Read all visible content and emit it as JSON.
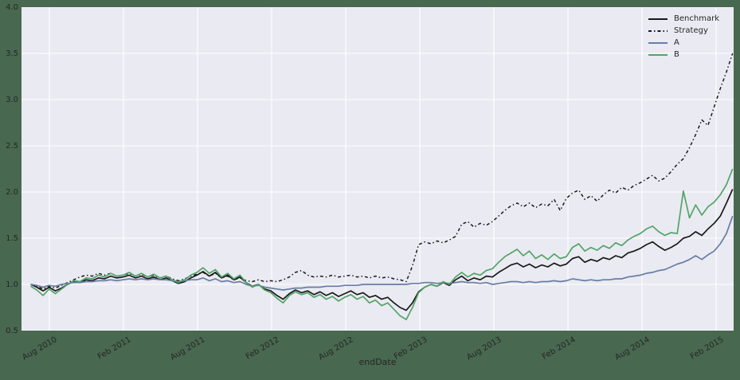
{
  "figure": {
    "background_color": "#48684f",
    "plot_background_color": "#eaeaf2",
    "grid_color": "#ffffff",
    "text_color": "#262626"
  },
  "chart_data": {
    "type": "line",
    "title": "",
    "xlabel": "endDate",
    "ylabel": "",
    "ylim": [
      0.5,
      4.0
    ],
    "yticks": [
      0.5,
      1.0,
      1.5,
      2.0,
      2.5,
      3.0,
      3.5,
      4.0
    ],
    "xtick_labels": [
      "Aug 2010",
      "Feb 2011",
      "Aug 2011",
      "Feb 2012",
      "Aug 2012",
      "Feb 2013",
      "Aug 2013",
      "Feb 2014",
      "Aug 2014",
      "Feb 2015"
    ],
    "x_start_label": "Jun 2010",
    "x_end_label": "Mar 2015",
    "points_per_month": 2,
    "grid": true,
    "legend_position": "upper right",
    "series": [
      {
        "name": "Benchmark",
        "color": "#1a1a1a",
        "style": "solid",
        "values": [
          1.0,
          0.97,
          0.93,
          0.97,
          0.93,
          0.96,
          1.0,
          1.03,
          1.02,
          1.05,
          1.04,
          1.07,
          1.06,
          1.09,
          1.07,
          1.08,
          1.1,
          1.07,
          1.09,
          1.06,
          1.08,
          1.05,
          1.07,
          1.04,
          1.01,
          1.03,
          1.07,
          1.1,
          1.14,
          1.09,
          1.13,
          1.07,
          1.1,
          1.05,
          1.08,
          1.02,
          0.98,
          1.0,
          0.95,
          0.93,
          0.88,
          0.84,
          0.9,
          0.94,
          0.91,
          0.93,
          0.89,
          0.92,
          0.88,
          0.91,
          0.87,
          0.9,
          0.93,
          0.89,
          0.91,
          0.86,
          0.88,
          0.84,
          0.86,
          0.8,
          0.75,
          0.72,
          0.8,
          0.92,
          0.97,
          1.0,
          0.98,
          1.02,
          0.99,
          1.05,
          1.09,
          1.04,
          1.07,
          1.05,
          1.09,
          1.08,
          1.13,
          1.17,
          1.21,
          1.23,
          1.19,
          1.22,
          1.18,
          1.21,
          1.19,
          1.23,
          1.2,
          1.22,
          1.28,
          1.3,
          1.24,
          1.27,
          1.25,
          1.29,
          1.27,
          1.31,
          1.29,
          1.34,
          1.36,
          1.39,
          1.43,
          1.46,
          1.41,
          1.37,
          1.4,
          1.44,
          1.5,
          1.52,
          1.57,
          1.53,
          1.6,
          1.66,
          1.74,
          1.88,
          2.03
        ]
      },
      {
        "name": "Strategy",
        "color": "#1a1a1a",
        "style": "dashdot",
        "values": [
          1.0,
          0.98,
          0.95,
          0.98,
          0.96,
          0.99,
          1.02,
          1.05,
          1.08,
          1.1,
          1.09,
          1.12,
          1.1,
          1.12,
          1.09,
          1.1,
          1.12,
          1.09,
          1.11,
          1.08,
          1.1,
          1.07,
          1.09,
          1.06,
          1.04,
          1.06,
          1.09,
          1.11,
          1.13,
          1.09,
          1.12,
          1.07,
          1.09,
          1.05,
          1.07,
          1.04,
          1.03,
          1.05,
          1.03,
          1.04,
          1.03,
          1.05,
          1.08,
          1.13,
          1.15,
          1.1,
          1.08,
          1.09,
          1.08,
          1.1,
          1.08,
          1.09,
          1.1,
          1.08,
          1.09,
          1.07,
          1.09,
          1.07,
          1.08,
          1.06,
          1.05,
          1.03,
          1.2,
          1.43,
          1.46,
          1.44,
          1.47,
          1.45,
          1.48,
          1.52,
          1.65,
          1.68,
          1.62,
          1.66,
          1.64,
          1.68,
          1.74,
          1.8,
          1.85,
          1.88,
          1.84,
          1.88,
          1.83,
          1.87,
          1.85,
          1.92,
          1.8,
          1.93,
          1.99,
          2.02,
          1.92,
          1.96,
          1.9,
          1.97,
          2.02,
          1.99,
          2.05,
          2.02,
          2.07,
          2.1,
          2.14,
          2.18,
          2.12,
          2.15,
          2.22,
          2.3,
          2.36,
          2.48,
          2.62,
          2.78,
          2.72,
          2.92,
          3.12,
          3.3,
          3.5
        ]
      },
      {
        "name": "A",
        "color": "#687da6",
        "style": "solid",
        "values": [
          1.0,
          0.99,
          0.97,
          0.99,
          0.98,
          1.0,
          1.01,
          1.02,
          1.02,
          1.03,
          1.03,
          1.04,
          1.04,
          1.05,
          1.04,
          1.05,
          1.06,
          1.05,
          1.06,
          1.05,
          1.06,
          1.05,
          1.05,
          1.04,
          1.03,
          1.04,
          1.05,
          1.05,
          1.07,
          1.04,
          1.06,
          1.03,
          1.04,
          1.02,
          1.03,
          1.0,
          0.98,
          0.99,
          0.97,
          0.96,
          0.95,
          0.94,
          0.95,
          0.96,
          0.96,
          0.97,
          0.97,
          0.97,
          0.98,
          0.98,
          0.98,
          0.99,
          0.99,
          0.99,
          1.0,
          1.0,
          1.0,
          1.0,
          1.0,
          1.0,
          1.0,
          1.0,
          1.01,
          1.01,
          1.02,
          1.02,
          1.01,
          1.02,
          1.01,
          1.02,
          1.03,
          1.02,
          1.02,
          1.01,
          1.02,
          1.0,
          1.01,
          1.02,
          1.03,
          1.03,
          1.02,
          1.03,
          1.02,
          1.03,
          1.03,
          1.04,
          1.03,
          1.04,
          1.06,
          1.05,
          1.04,
          1.05,
          1.04,
          1.05,
          1.05,
          1.06,
          1.06,
          1.08,
          1.09,
          1.1,
          1.12,
          1.13,
          1.15,
          1.16,
          1.19,
          1.22,
          1.24,
          1.27,
          1.31,
          1.27,
          1.32,
          1.36,
          1.44,
          1.55,
          1.74
        ]
      },
      {
        "name": "B",
        "color": "#52a468",
        "style": "solid",
        "values": [
          0.98,
          0.94,
          0.88,
          0.95,
          0.9,
          0.95,
          1.0,
          1.04,
          1.03,
          1.07,
          1.06,
          1.1,
          1.08,
          1.12,
          1.09,
          1.1,
          1.13,
          1.09,
          1.12,
          1.08,
          1.11,
          1.07,
          1.09,
          1.05,
          1.02,
          1.05,
          1.1,
          1.13,
          1.18,
          1.12,
          1.16,
          1.08,
          1.12,
          1.06,
          1.1,
          1.02,
          0.97,
          1.0,
          0.94,
          0.91,
          0.85,
          0.8,
          0.88,
          0.92,
          0.89,
          0.91,
          0.86,
          0.89,
          0.84,
          0.87,
          0.82,
          0.86,
          0.89,
          0.84,
          0.87,
          0.8,
          0.83,
          0.77,
          0.8,
          0.73,
          0.66,
          0.62,
          0.75,
          0.91,
          0.97,
          1.0,
          0.98,
          1.03,
          1.0,
          1.08,
          1.13,
          1.08,
          1.12,
          1.1,
          1.15,
          1.17,
          1.24,
          1.3,
          1.34,
          1.38,
          1.31,
          1.36,
          1.28,
          1.32,
          1.27,
          1.33,
          1.28,
          1.3,
          1.4,
          1.44,
          1.36,
          1.4,
          1.37,
          1.42,
          1.39,
          1.45,
          1.42,
          1.48,
          1.52,
          1.55,
          1.6,
          1.63,
          1.57,
          1.53,
          1.56,
          1.55,
          2.01,
          1.72,
          1.86,
          1.75,
          1.84,
          1.89,
          1.97,
          2.08,
          2.25
        ]
      }
    ]
  }
}
